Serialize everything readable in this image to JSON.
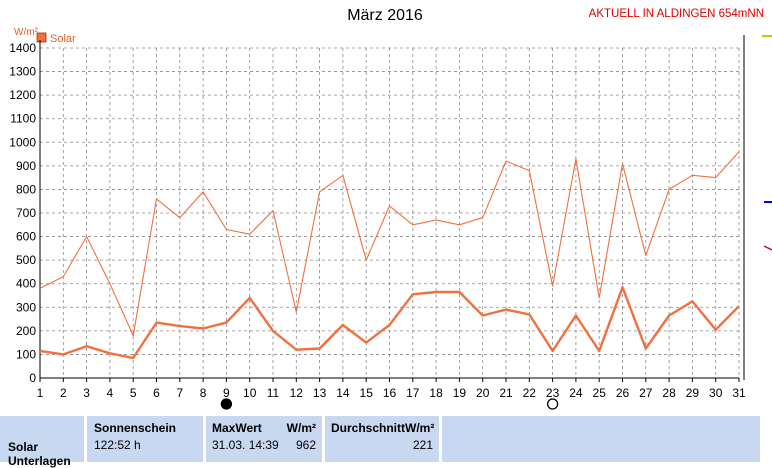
{
  "title": "März 2016",
  "station_label": "AKTUELL IN ALDINGEN 654mNN",
  "chart_data": {
    "type": "line",
    "title": "März 2016",
    "ylabel": "W/m²",
    "ylim": [
      0,
      1400
    ],
    "yticks": [
      0,
      100,
      200,
      300,
      400,
      500,
      600,
      700,
      800,
      900,
      1000,
      1100,
      1200,
      1300,
      1400
    ],
    "categories": [
      "1",
      "2",
      "3",
      "4",
      "5",
      "6",
      "7",
      "8",
      "9",
      "10",
      "11",
      "12",
      "13",
      "14",
      "15",
      "16",
      "17",
      "18",
      "19",
      "20",
      "21",
      "22",
      "23",
      "24",
      "25",
      "26",
      "27",
      "28",
      "29",
      "30",
      "31"
    ],
    "legend": "top-left",
    "grid": true,
    "series": [
      {
        "name": "Solar",
        "role": "max",
        "color": "#f07040",
        "values": [
          380,
          430,
          600,
          400,
          180,
          760,
          680,
          790,
          630,
          610,
          710,
          280,
          790,
          860,
          500,
          730,
          650,
          670,
          650,
          680,
          920,
          880,
          390,
          930,
          340,
          910,
          520,
          800,
          860,
          850,
          960
        ]
      },
      {
        "name": "Solar",
        "role": "average",
        "color": "#f07040",
        "values": [
          115,
          100,
          135,
          105,
          85,
          235,
          220,
          210,
          235,
          340,
          200,
          120,
          125,
          225,
          150,
          225,
          355,
          365,
          365,
          265,
          290,
          270,
          115,
          265,
          115,
          385,
          125,
          265,
          325,
          205,
          305
        ]
      }
    ],
    "markers": [
      {
        "day": "9",
        "symbol": "new-moon"
      },
      {
        "day": "23",
        "symbol": "full-moon"
      }
    ]
  },
  "stats": {
    "row_label": "Solar",
    "row_sublabel": "Unterlagen",
    "sunshine_header": "Sonnenschein",
    "sunshine_value": "122:52 h",
    "max_header": "MaxWert",
    "max_unit": "W/m²",
    "max_datetime": "31.03.  14:39",
    "max_value": "962",
    "avg_header": "DurchschnittW/m²",
    "avg_value": "221"
  },
  "colors": {
    "series": "#f07040",
    "grid": "#8a8a8a",
    "station": "#e00000",
    "table_bg": "#c8d8f0"
  }
}
